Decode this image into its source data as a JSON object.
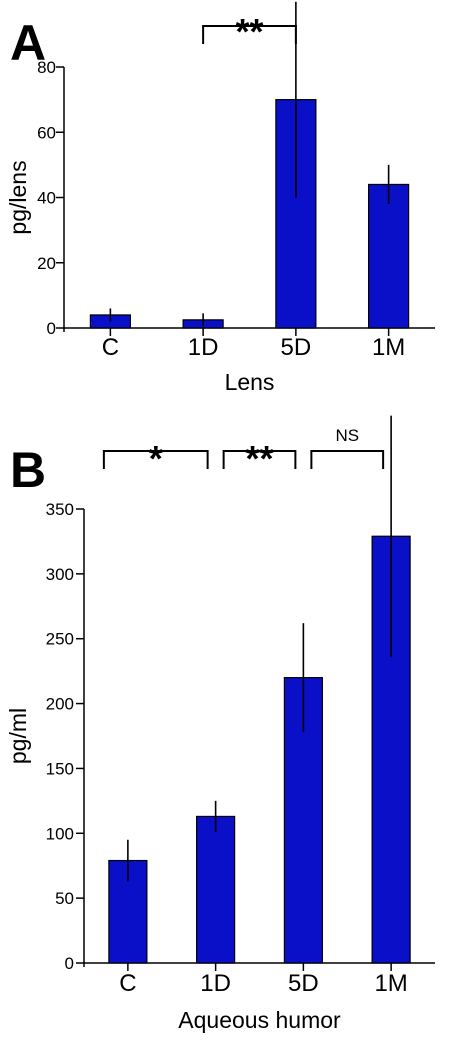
{
  "colors": {
    "bar": "#0a0fc8",
    "axis": "#000000"
  },
  "chart_data": [
    {
      "type": "bar",
      "panel": "A",
      "categories": [
        "C",
        "1D",
        "5D",
        "1M"
      ],
      "values": [
        4,
        2.5,
        70,
        44
      ],
      "errors": [
        2,
        2,
        30,
        6
      ],
      "xlabel": "Lens",
      "ylabel": "pg/lens",
      "ylim": [
        0,
        80
      ],
      "yticks": [
        0,
        20,
        40,
        60,
        80
      ],
      "significance": [
        {
          "from": 1,
          "to": 2,
          "label": "**"
        }
      ]
    },
    {
      "type": "bar",
      "panel": "B",
      "categories": [
        "C",
        "1D",
        "5D",
        "1M"
      ],
      "values": [
        79,
        113,
        220,
        329
      ],
      "errors": [
        16,
        12,
        42,
        93
      ],
      "xlabel": "Aqueous humor",
      "ylabel": "pg/ml",
      "ylim": [
        0,
        350
      ],
      "yticks": [
        0,
        50,
        100,
        150,
        200,
        250,
        300,
        350
      ],
      "significance": [
        {
          "from": 0,
          "to": 1,
          "label": "*"
        },
        {
          "from": 1,
          "to": 2,
          "label": "**"
        },
        {
          "from": 2,
          "to": 3,
          "label": "NS"
        }
      ]
    }
  ]
}
